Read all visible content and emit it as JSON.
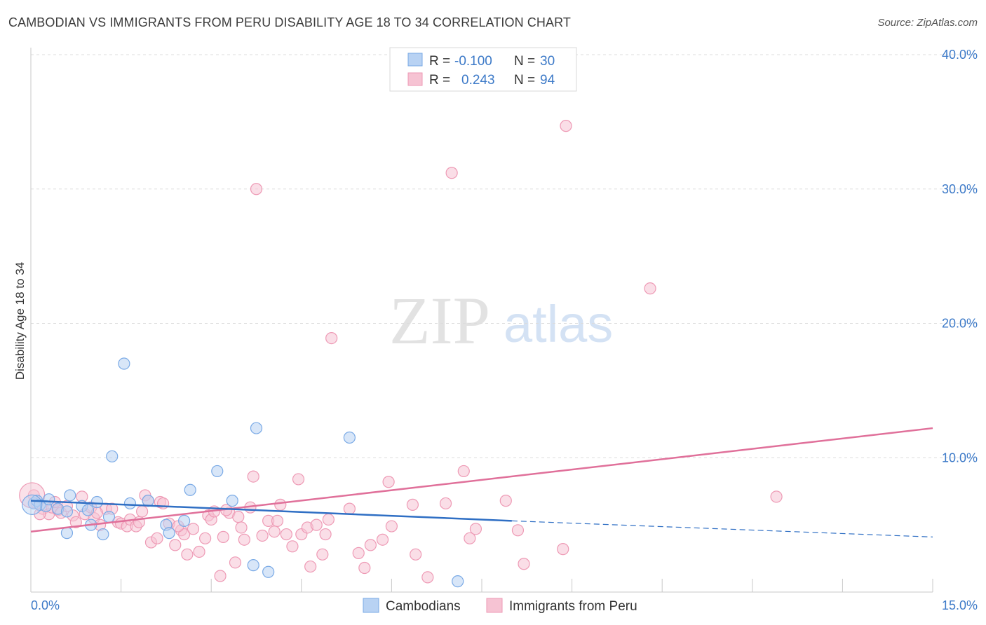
{
  "header": {
    "title": "CAMBODIAN VS IMMIGRANTS FROM PERU DISABILITY AGE 18 TO 34 CORRELATION CHART",
    "source": "Source: ZipAtlas.com"
  },
  "watermark": {
    "zip": "ZIP",
    "atlas": "atlas"
  },
  "chart_data": {
    "type": "scatter",
    "title": "CAMBODIAN VS IMMIGRANTS FROM PERU DISABILITY AGE 18 TO 34 CORRELATION CHART",
    "xlabel": "",
    "ylabel": "Disability Age 18 to 34",
    "xlim": [
      0,
      15
    ],
    "ylim": [
      0,
      40
    ],
    "x_tick_labels": [
      "0.0%",
      "15.0%"
    ],
    "y_ticks": [
      10,
      20,
      30,
      40
    ],
    "y_tick_labels": [
      "10.0%",
      "20.0%",
      "30.0%",
      "40.0%"
    ],
    "legend": [
      {
        "r_label": "R =",
        "r_value": "-0.100",
        "n_label": "N =",
        "n_value": "30"
      },
      {
        "r_label": "R =",
        "r_value": "0.243",
        "n_label": "N =",
        "n_value": "94"
      }
    ],
    "series": [
      {
        "name": "Cambodians",
        "color": "#7aaae6",
        "fill": "#b8d2f3",
        "line_color": "#2f6fc4",
        "trend": {
          "x0": 0,
          "y0": 6.8,
          "x1": 8.0,
          "y1": 5.3,
          "dash_x1": 15.0,
          "dash_y1": 4.1
        },
        "points": [
          [
            0.05,
            6.6
          ],
          [
            0.1,
            6.8
          ],
          [
            0.15,
            6.5
          ],
          [
            0.25,
            6.4
          ],
          [
            0.3,
            6.9
          ],
          [
            0.45,
            6.2
          ],
          [
            0.6,
            6.0
          ],
          [
            0.6,
            4.4
          ],
          [
            0.65,
            7.2
          ],
          [
            0.85,
            6.4
          ],
          [
            0.95,
            6.1
          ],
          [
            1.0,
            5.0
          ],
          [
            1.1,
            6.7
          ],
          [
            1.2,
            4.3
          ],
          [
            1.3,
            5.6
          ],
          [
            1.35,
            10.1
          ],
          [
            1.55,
            17.0
          ],
          [
            1.65,
            6.6
          ],
          [
            1.95,
            6.8
          ],
          [
            2.25,
            5.0
          ],
          [
            2.3,
            4.4
          ],
          [
            2.55,
            5.3
          ],
          [
            2.65,
            7.6
          ],
          [
            3.1,
            9.0
          ],
          [
            3.35,
            6.8
          ],
          [
            3.75,
            12.2
          ],
          [
            3.7,
            2.0
          ],
          [
            3.95,
            1.5
          ],
          [
            5.3,
            11.5
          ],
          [
            7.1,
            0.8
          ]
        ]
      },
      {
        "name": "Immigrants from Peru",
        "color": "#ee9ab5",
        "fill": "#f6c3d3",
        "line_color": "#e0709a",
        "trend": {
          "x0": 0,
          "y0": 4.5,
          "x1": 15.0,
          "y1": 12.2
        },
        "points": [
          [
            0.05,
            7.2
          ],
          [
            0.1,
            6.6
          ],
          [
            0.2,
            6.2
          ],
          [
            0.3,
            5.8
          ],
          [
            0.35,
            6.3
          ],
          [
            0.45,
            6.1
          ],
          [
            0.5,
            5.9
          ],
          [
            0.6,
            6.4
          ],
          [
            0.7,
            5.7
          ],
          [
            0.75,
            5.2
          ],
          [
            0.85,
            7.1
          ],
          [
            0.9,
            5.8
          ],
          [
            1.0,
            6.3
          ],
          [
            1.05,
            5.5
          ],
          [
            1.15,
            5.0
          ],
          [
            1.25,
            6.2
          ],
          [
            1.35,
            6.2
          ],
          [
            1.45,
            5.2
          ],
          [
            1.5,
            5.1
          ],
          [
            1.6,
            4.9
          ],
          [
            1.65,
            5.4
          ],
          [
            1.75,
            4.9
          ],
          [
            1.85,
            6.0
          ],
          [
            1.9,
            7.2
          ],
          [
            1.95,
            6.8
          ],
          [
            2.0,
            3.7
          ],
          [
            2.1,
            4.0
          ],
          [
            2.15,
            6.7
          ],
          [
            2.2,
            6.6
          ],
          [
            2.3,
            5.1
          ],
          [
            2.4,
            3.5
          ],
          [
            2.5,
            4.6
          ],
          [
            2.55,
            4.3
          ],
          [
            2.6,
            2.8
          ],
          [
            2.7,
            4.7
          ],
          [
            2.8,
            3.0
          ],
          [
            2.9,
            4.0
          ],
          [
            2.95,
            5.7
          ],
          [
            3.0,
            5.4
          ],
          [
            3.05,
            6.0
          ],
          [
            3.15,
            1.2
          ],
          [
            3.2,
            4.1
          ],
          [
            3.3,
            5.9
          ],
          [
            3.4,
            2.2
          ],
          [
            3.45,
            5.6
          ],
          [
            3.5,
            4.8
          ],
          [
            3.55,
            3.9
          ],
          [
            3.65,
            6.3
          ],
          [
            3.7,
            8.6
          ],
          [
            3.75,
            30.0
          ],
          [
            3.85,
            4.2
          ],
          [
            3.95,
            5.3
          ],
          [
            4.05,
            4.5
          ],
          [
            4.1,
            5.3
          ],
          [
            4.15,
            6.5
          ],
          [
            4.25,
            4.3
          ],
          [
            4.35,
            3.4
          ],
          [
            4.45,
            8.4
          ],
          [
            4.5,
            4.3
          ],
          [
            4.6,
            4.8
          ],
          [
            4.65,
            1.9
          ],
          [
            4.85,
            2.8
          ],
          [
            4.9,
            4.3
          ],
          [
            4.95,
            5.4
          ],
          [
            5.0,
            18.9
          ],
          [
            5.3,
            6.2
          ],
          [
            5.45,
            2.9
          ],
          [
            5.55,
            1.8
          ],
          [
            5.65,
            3.5
          ],
          [
            5.85,
            3.9
          ],
          [
            5.95,
            8.2
          ],
          [
            6.0,
            4.9
          ],
          [
            6.35,
            6.5
          ],
          [
            6.4,
            2.8
          ],
          [
            6.6,
            1.1
          ],
          [
            6.9,
            6.6
          ],
          [
            7.0,
            31.2
          ],
          [
            7.2,
            9.0
          ],
          [
            7.3,
            4.0
          ],
          [
            7.4,
            4.7
          ],
          [
            7.9,
            6.8
          ],
          [
            8.1,
            4.6
          ],
          [
            8.2,
            2.1
          ],
          [
            8.85,
            3.2
          ],
          [
            8.9,
            34.7
          ],
          [
            10.3,
            22.6
          ],
          [
            12.4,
            7.1
          ],
          [
            0.15,
            5.8
          ],
          [
            0.4,
            6.7
          ],
          [
            1.1,
            5.9
          ],
          [
            1.8,
            5.2
          ],
          [
            2.45,
            4.9
          ],
          [
            3.25,
            6.1
          ],
          [
            4.75,
            5.0
          ]
        ]
      }
    ]
  }
}
